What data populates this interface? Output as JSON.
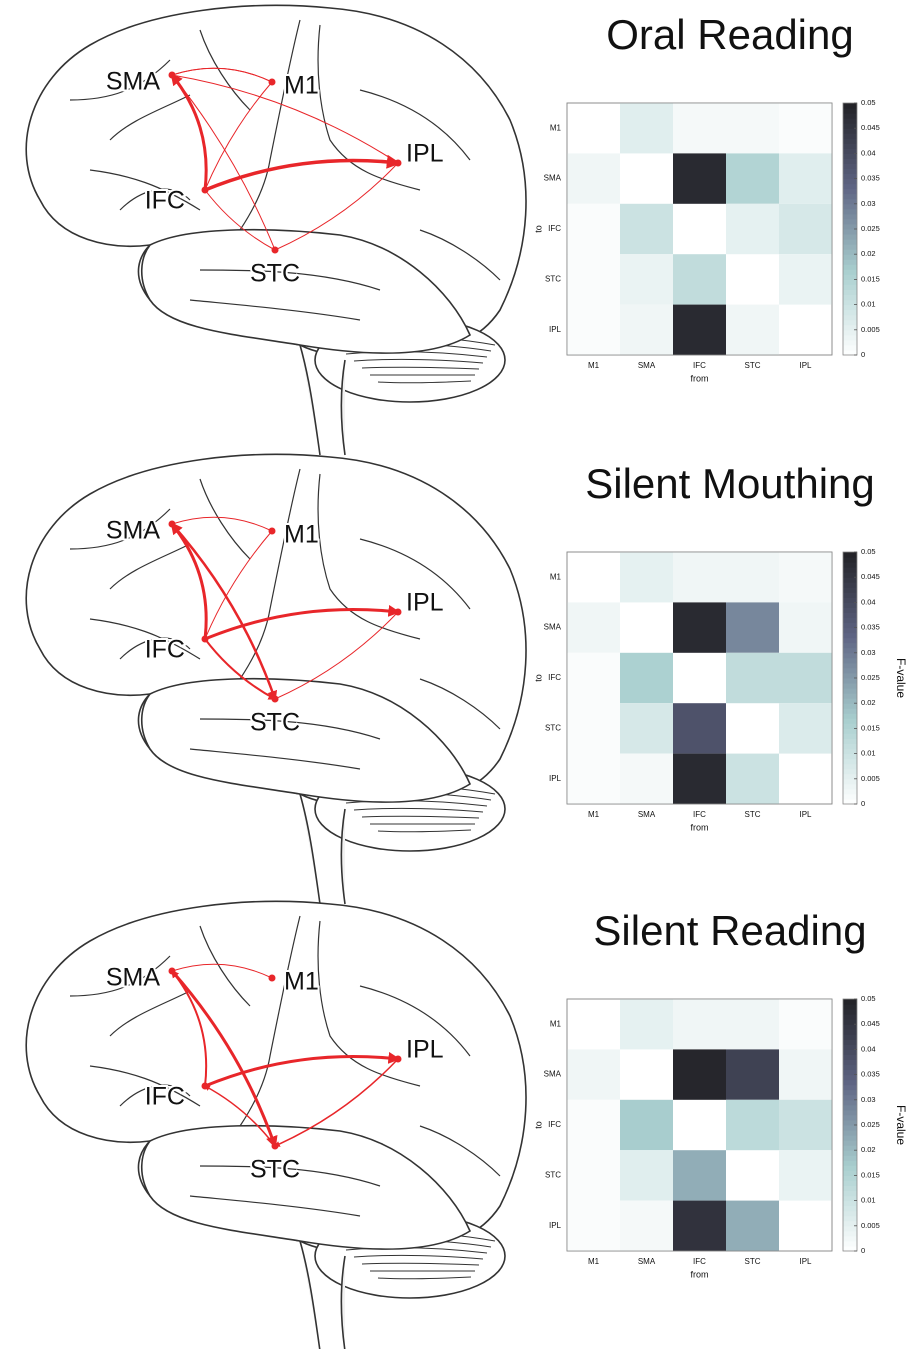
{
  "chart_data": [
    {
      "type": "heatmap",
      "title": "Oral Reading",
      "categories": [
        "M1",
        "SMA",
        "IFC",
        "STC",
        "IPL"
      ],
      "rows": [
        "M1",
        "SMA",
        "IFC",
        "STC",
        "IPL"
      ],
      "xlabel": "from",
      "ylabel": "to",
      "values": [
        [
          null,
          0.006,
          0.002,
          0.002,
          0.001
        ],
        [
          0.003,
          null,
          0.048,
          0.015,
          0.006
        ],
        [
          0.001,
          0.01,
          null,
          0.005,
          0.008
        ],
        [
          0.001,
          0.004,
          0.012,
          null,
          0.004
        ],
        [
          0.001,
          0.003,
          0.048,
          0.003,
          null
        ]
      ],
      "zlim": [
        0,
        0.05
      ],
      "zticks": [
        0,
        0.005,
        0.01,
        0.015,
        0.02,
        0.025,
        0.03,
        0.035,
        0.04,
        0.045,
        0.05
      ],
      "colormap": [
        "#ffffff",
        "#a9cfcf",
        "#5f6584",
        "#222226"
      ]
    },
    {
      "type": "heatmap",
      "title": "Silent Mouthing",
      "categories": [
        "M1",
        "SMA",
        "IFC",
        "STC",
        "IPL"
      ],
      "rows": [
        "M1",
        "SMA",
        "IFC",
        "STC",
        "IPL"
      ],
      "xlabel": "from",
      "ylabel": "to",
      "colorbar_label": "F-value",
      "values": [
        [
          null,
          0.005,
          0.003,
          0.003,
          0.002
        ],
        [
          0.003,
          null,
          0.048,
          0.028,
          0.003
        ],
        [
          0.001,
          0.016,
          null,
          0.012,
          0.012
        ],
        [
          0.001,
          0.008,
          0.038,
          null,
          0.007
        ],
        [
          0.001,
          0.002,
          0.048,
          0.01,
          null
        ]
      ],
      "zlim": [
        0,
        0.05
      ],
      "zticks": [
        0,
        0.005,
        0.01,
        0.015,
        0.02,
        0.025,
        0.03,
        0.035,
        0.04,
        0.045,
        0.05
      ],
      "colormap": [
        "#ffffff",
        "#a9cfcf",
        "#5f6584",
        "#222226"
      ]
    },
    {
      "type": "heatmap",
      "title": "Silent Reading",
      "categories": [
        "M1",
        "SMA",
        "IFC",
        "STC",
        "IPL"
      ],
      "rows": [
        "M1",
        "SMA",
        "IFC",
        "STC",
        "IPL"
      ],
      "xlabel": "from",
      "ylabel": "to",
      "colorbar_label": "F-value",
      "values": [
        [
          null,
          0.005,
          0.003,
          0.003,
          0.001
        ],
        [
          0.003,
          null,
          0.049,
          0.042,
          0.003
        ],
        [
          0.001,
          0.017,
          null,
          0.013,
          0.01
        ],
        [
          0.001,
          0.006,
          0.022,
          null,
          0.004
        ],
        [
          0.001,
          0.002,
          0.046,
          0.022,
          null
        ]
      ],
      "zlim": [
        0,
        0.05
      ],
      "zticks": [
        0,
        0.005,
        0.01,
        0.015,
        0.02,
        0.025,
        0.03,
        0.035,
        0.04,
        0.045,
        0.05
      ],
      "colormap": [
        "#ffffff",
        "#a9cfcf",
        "#5f6584",
        "#222226"
      ]
    }
  ],
  "diagrams": [
    {
      "nodes": [
        "SMA",
        "M1",
        "IPL",
        "IFC",
        "STC"
      ]
    },
    {
      "nodes": [
        "SMA",
        "M1",
        "IPL",
        "IFC",
        "STC"
      ]
    },
    {
      "nodes": [
        "SMA",
        "M1",
        "IPL",
        "IFC",
        "STC"
      ]
    }
  ]
}
